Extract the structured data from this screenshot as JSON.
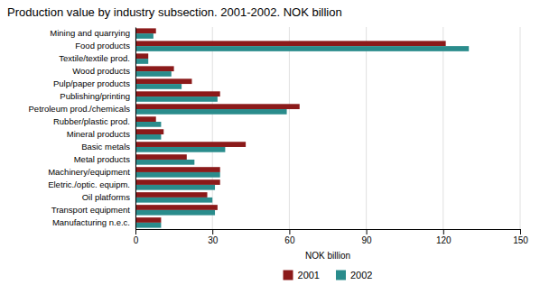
{
  "chart_data": {
    "type": "bar",
    "orientation": "horizontal",
    "title": "Production value by industry subsection. 2001-2002. NOK billion",
    "xlabel": "NOK billion",
    "categories": [
      "Mining and quarrying",
      "Food products",
      "Textile/textile prod.",
      "Wood products",
      "Pulp/paper products",
      "Publishing/printing",
      "Petroleum prod./chemicals",
      "Rubber/plastic prod.",
      "Mineral products",
      "Basic metals",
      "Metal products",
      "Machinery/equipment",
      "Eletric./optic. equipm.",
      "Oil platforms",
      "Transport equipment",
      "Manufacturing n.e.c."
    ],
    "series": [
      {
        "name": "2001",
        "color": "#8B1A1A",
        "values": [
          8,
          121,
          5,
          15,
          22,
          33,
          64,
          8,
          11,
          43,
          20,
          33,
          33,
          28,
          32,
          10
        ]
      },
      {
        "name": "2002",
        "color": "#2A8C8C",
        "values": [
          7,
          130,
          5,
          14,
          18,
          32,
          59,
          10,
          10,
          35,
          23,
          33,
          31,
          30,
          31,
          10
        ]
      }
    ],
    "xlim": [
      0,
      150
    ],
    "xticks": [
      0,
      30,
      60,
      90,
      120,
      150
    ],
    "grid": true,
    "legend": "bottom"
  }
}
